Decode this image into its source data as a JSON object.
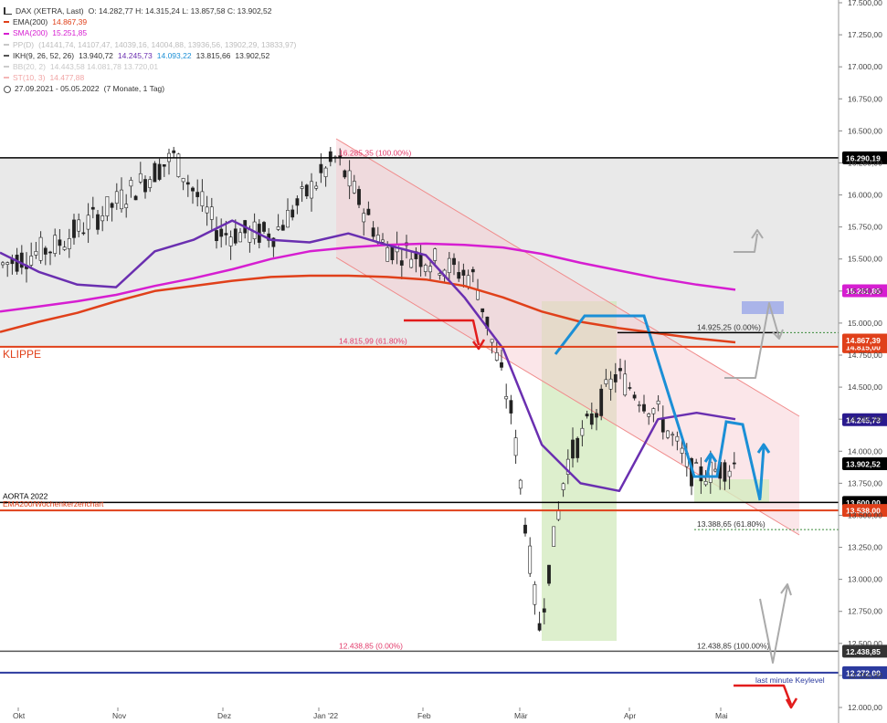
{
  "legend": {
    "title": "DAX (XETRA, Last)",
    "ohlc": "O: 14.282,77   H: 14.315,24   L: 13.857,58   C: 13.902,52",
    "ema": {
      "label": "EMA(200)",
      "value": "14.867,39",
      "color": "#e0401a"
    },
    "sma": {
      "label": "SMA(200)",
      "value": "15.251,85",
      "color": "#d61ed1"
    },
    "pp": {
      "label": "PP(D)",
      "value": "(14141,74, 14107,47, 14039,16, 14004,88, 13936,56, 13902,29, 13833,97)",
      "color": "#c8c8c8"
    },
    "ikh": {
      "label": "IKH(9, 26, 52, 26)",
      "v1": "13.940,72",
      "v2": "14.245,73",
      "v3": "14.093,22",
      "v4": "13.815,66",
      "v5": "13.902,52",
      "color": "#555555"
    },
    "bb": {
      "label": "BB(20, 2)",
      "value": "14.443,58  14.081,78  13.720,01",
      "color": "#cccccc"
    },
    "st": {
      "label": "ST(10, 3)",
      "value": "14.477,88",
      "color": "#f4b6b6"
    },
    "range": "27.09.2021 - 05.05.2022",
    "period": "(7 Monate, 1 Tag)"
  },
  "chart_data": {
    "type": "line",
    "title": "DAX (XETRA, Last)",
    "ylim": [
      11950,
      17550
    ],
    "x_ticks": [
      "Okt",
      "Nov",
      "Dez",
      "Jan '22",
      "Feb",
      "Mär",
      "Apr",
      "Mai"
    ],
    "y_ticks": [
      "12.000,00",
      "12.250,00",
      "12.500,00",
      "12.750,00",
      "13.000,00",
      "13.250,00",
      "13.500,00",
      "13.750,00",
      "14.000,00",
      "14.250,00",
      "14.500,00",
      "14.750,00",
      "15.000,00",
      "15.250,00",
      "15.500,00",
      "15.750,00",
      "16.000,00",
      "16.250,00",
      "16.500,00",
      "16.750,00",
      "17.000,00",
      "17.250,00",
      "17.500,00"
    ],
    "horizontal_levels": [
      {
        "value": 16290.19,
        "label": "16.290,19",
        "color": "#000000"
      },
      {
        "value": 14815.0,
        "label": "14.815,00",
        "color": "#e0401a",
        "annotation": "KLIPPE"
      },
      {
        "value": 13600.0,
        "label": "13.600,00",
        "color": "#000000",
        "annotation": "AORTA 2022"
      },
      {
        "value": 13538.0,
        "label": "13.538,00",
        "color": "#e0401a",
        "annotation": "EMA200/Wochenkerzenchart"
      },
      {
        "value": 12438.85,
        "label": "12.438,85",
        "color": "#555555"
      },
      {
        "value": 12272.0,
        "label": "12.272,00",
        "color": "#2b3a9e",
        "annotation": "last minute Keylevel"
      }
    ],
    "price_badges": [
      {
        "value": 14867.39,
        "label": "14.867,39",
        "color": "#e0401a"
      },
      {
        "value": 15251.85,
        "label": "15.251,85",
        "color": "#d61ed1"
      },
      {
        "value": 14245.73,
        "label": "14.245,73",
        "color": "#2a1a8e"
      },
      {
        "value": 13902.52,
        "label": "13.902,52",
        "color": "#000000"
      }
    ],
    "fib_labels": [
      {
        "text": "16.285,35 (100.00%)",
        "value": 16285.35,
        "color": "#e23b6b"
      },
      {
        "text": "14.815,99 (61.80%)",
        "value": 14815.99,
        "color": "#e23b6b"
      },
      {
        "text": "12.438,85 (0.00%)",
        "value": 12438.85,
        "color": "#e23b6b"
      },
      {
        "text": "14.925,25 (0.00%)",
        "value": 14925.25,
        "color": "#333333"
      },
      {
        "text": "13.388,65 (61.80%)",
        "value": 13388.65,
        "color": "#333333"
      },
      {
        "text": "12.438,85 (100.00%)",
        "value": 12438.85,
        "color": "#333333"
      }
    ],
    "series": [
      {
        "name": "SMA(200)",
        "color": "#d61ed1",
        "values": [
          15090,
          15130,
          15170,
          15220,
          15290,
          15350,
          15420,
          15500,
          15560,
          15590,
          15610,
          15620,
          15610,
          15590,
          15540,
          15470,
          15410,
          15350,
          15300,
          15260
        ]
      },
      {
        "name": "EMA(200)",
        "color": "#e0401a",
        "values": [
          14930,
          15010,
          15080,
          15170,
          15250,
          15290,
          15330,
          15360,
          15370,
          15370,
          15360,
          15340,
          15290,
          15200,
          15090,
          15010,
          14960,
          14920,
          14880,
          14850
        ]
      },
      {
        "name": "IKH(9, 26, 52, 26)",
        "color": "#6a2fb0",
        "values": [
          15550,
          15400,
          15300,
          15280,
          15560,
          15650,
          15800,
          15650,
          15630,
          15700,
          15610,
          15530,
          15200,
          14800,
          14050,
          13750,
          13690,
          14250,
          14300,
          14250
        ]
      }
    ]
  }
}
